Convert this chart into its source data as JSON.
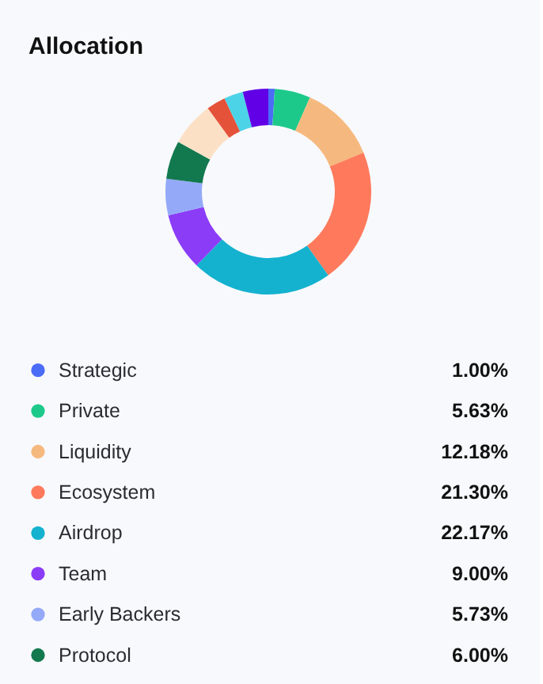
{
  "chart_data": {
    "type": "donut",
    "title": "Allocation",
    "categories": [
      "Strategic",
      "Private",
      "Liquidity",
      "Ecosystem",
      "Airdrop",
      "Team",
      "Early Backers",
      "Protocol",
      null,
      null,
      null,
      null
    ],
    "values": [
      1.0,
      5.63,
      12.18,
      21.3,
      22.17,
      9.0,
      5.73,
      6.0,
      6.99,
      3,
      3,
      4
    ],
    "value_labels": [
      "1.00%",
      "5.63%",
      "12.18%",
      "21.30%",
      "22.17%",
      "9.00%",
      "5.73%",
      "6.00%",
      null,
      null,
      null,
      null
    ],
    "colors": [
      "#4a6cf7",
      "#1dc98a",
      "#f5b97f",
      "#ff7a5c",
      "#14b2cf",
      "#8b3cf7",
      "#94aaf8",
      "#12794f",
      "#fce0c5",
      "#e5523a",
      "#4dd3e8",
      "#6100e6"
    ],
    "legend": "bottom"
  }
}
